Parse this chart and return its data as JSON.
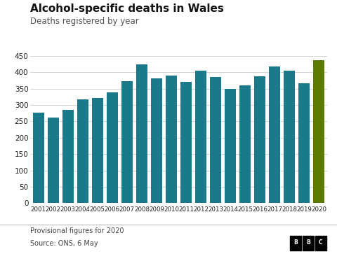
{
  "title": "Alcohol-specific deaths in Wales",
  "subtitle": "Deaths registered by year",
  "years": [
    "2001",
    "2002",
    "2003",
    "2004",
    "2005",
    "2006",
    "2007",
    "2008",
    "2009",
    "2010",
    "2011",
    "2012",
    "2013",
    "2014",
    "2015",
    "2016",
    "2017",
    "2018",
    "2019",
    "2020"
  ],
  "values": [
    277,
    261,
    285,
    318,
    321,
    339,
    373,
    425,
    382,
    390,
    371,
    404,
    385,
    350,
    360,
    387,
    417,
    405,
    366,
    436
  ],
  "bar_colors": [
    "#1a7a8a",
    "#1a7a8a",
    "#1a7a8a",
    "#1a7a8a",
    "#1a7a8a",
    "#1a7a8a",
    "#1a7a8a",
    "#1a7a8a",
    "#1a7a8a",
    "#1a7a8a",
    "#1a7a8a",
    "#1a7a8a",
    "#1a7a8a",
    "#1a7a8a",
    "#1a7a8a",
    "#1a7a8a",
    "#1a7a8a",
    "#1a7a8a",
    "#1a7a8a",
    "#5a7a00"
  ],
  "ylim": [
    0,
    450
  ],
  "yticks": [
    0,
    50,
    100,
    150,
    200,
    250,
    300,
    350,
    400,
    450
  ],
  "background_color": "#ffffff",
  "title_fontsize": 11,
  "title_fontweight": "bold",
  "subtitle_fontsize": 8.5,
  "footer_line1": "Provisional figures for 2020",
  "footer_line2": "Source: ONS, 6 May",
  "bbc_logo": "BBC",
  "grid_color": "#cccccc",
  "axis_label_color": "#222222",
  "footer_color": "#444444"
}
